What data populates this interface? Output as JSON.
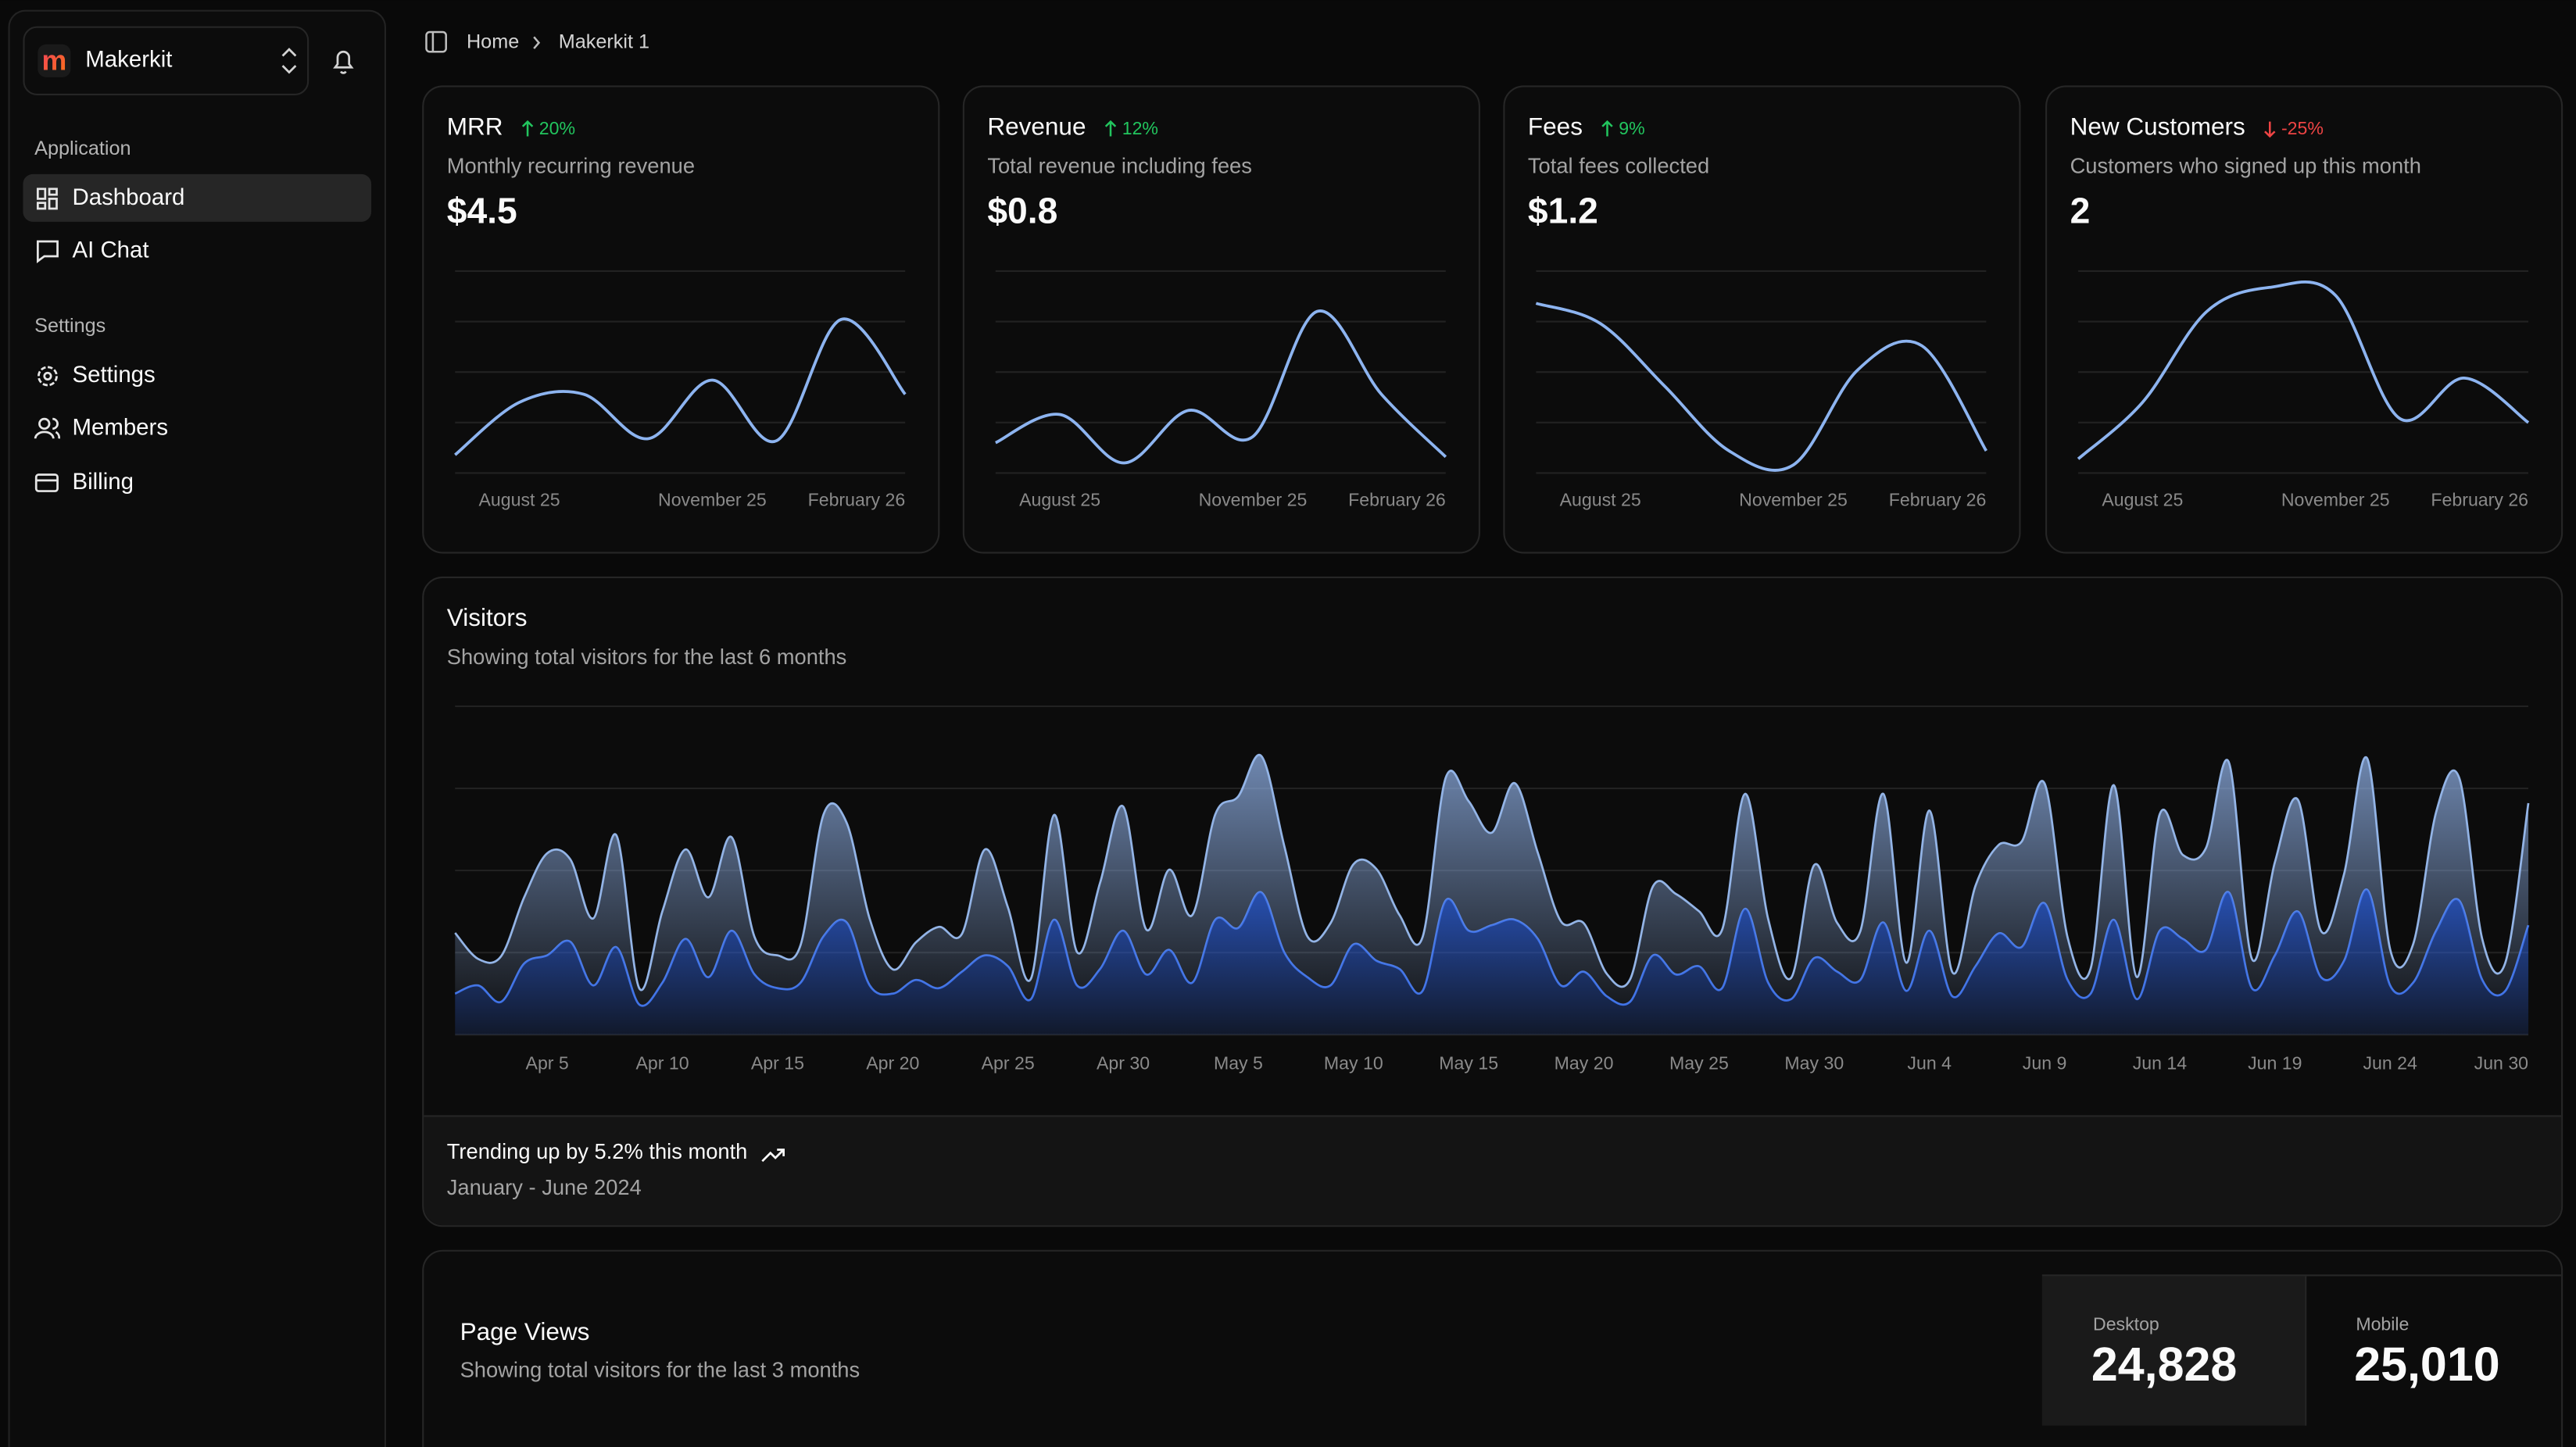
{
  "sidebar": {
    "workspace": "Makerkit",
    "sections": [
      {
        "title": "Application",
        "items": [
          "Dashboard",
          "AI Chat"
        ]
      },
      {
        "title": "Settings",
        "items": [
          "Settings",
          "Members",
          "Billing"
        ]
      }
    ]
  },
  "breadcrumb": [
    "Home",
    "Makerkit 1"
  ],
  "chart_data": [
    {
      "type": "line",
      "title": "MRR",
      "badge": "20%",
      "trend": "up",
      "subtitle": "Monthly recurring revenue",
      "value_label": "$4.5",
      "color": "#8db4f0",
      "categories": [
        null,
        "August 25",
        null,
        null,
        "November 25",
        null,
        null,
        "February 26"
      ],
      "values": [
        9,
        35,
        39,
        17,
        46,
        16,
        76,
        39
      ],
      "ylim": [
        0,
        100
      ],
      "yticks": [
        0,
        25,
        50,
        75,
        100
      ],
      "grid": true
    },
    {
      "type": "line",
      "title": "Revenue",
      "badge": "12%",
      "trend": "up",
      "subtitle": "Total revenue including fees",
      "value_label": "$0.8",
      "color": "#8db4f0",
      "categories": [
        null,
        "August 25",
        null,
        null,
        "November 25",
        null,
        null,
        "February 26"
      ],
      "values": [
        15,
        29,
        5,
        31,
        18,
        80,
        39,
        8
      ],
      "ylim": [
        0,
        100
      ],
      "yticks": [
        0,
        25,
        50,
        75,
        100
      ],
      "grid": true
    },
    {
      "type": "line",
      "title": "Fees",
      "badge": "9%",
      "trend": "up",
      "subtitle": "Total fees collected",
      "value_label": "$1.2",
      "color": "#8db4f0",
      "categories": [
        null,
        "August 25",
        null,
        null,
        "November 25",
        null,
        null,
        "February 26"
      ],
      "values": [
        84,
        74,
        43,
        11,
        4,
        51,
        63,
        11
      ],
      "ylim": [
        0,
        100
      ],
      "yticks": [
        0,
        25,
        50,
        75,
        100
      ],
      "grid": true
    },
    {
      "type": "line",
      "title": "New Customers",
      "badge": "-25%",
      "trend": "down",
      "subtitle": "Customers who signed up this month",
      "value_label": "2",
      "color": "#8db4f0",
      "categories": [
        null,
        "August 25",
        null,
        null,
        "November 25",
        null,
        null,
        "February 26"
      ],
      "values": [
        7,
        35,
        80,
        92,
        88,
        27,
        47,
        25
      ],
      "ylim": [
        0,
        100
      ],
      "yticks": [
        0,
        25,
        50,
        75,
        100
      ],
      "grid": true
    },
    {
      "type": "area",
      "stacked": true,
      "title": "Visitors",
      "subtitle": "Showing total visitors for the last 6 months",
      "footer_title": "Trending up by 5.2% this month",
      "footer_subtitle": "January - June 2024",
      "ylim": [
        0,
        1200
      ],
      "yticks": [
        0,
        300,
        600,
        900,
        1200
      ],
      "grid": true,
      "categories": [
        null,
        null,
        null,
        null,
        "Apr 5",
        null,
        null,
        null,
        null,
        "Apr 10",
        null,
        null,
        null,
        null,
        "Apr 15",
        null,
        null,
        null,
        null,
        "Apr 20",
        null,
        null,
        null,
        null,
        "Apr 25",
        null,
        null,
        null,
        null,
        "Apr 30",
        null,
        null,
        null,
        null,
        "May 5",
        null,
        null,
        null,
        null,
        "May 10",
        null,
        null,
        null,
        null,
        "May 15",
        null,
        null,
        null,
        null,
        "May 20",
        null,
        null,
        null,
        null,
        "May 25",
        null,
        null,
        null,
        null,
        "May 30",
        null,
        null,
        null,
        null,
        "Jun 4",
        null,
        null,
        null,
        null,
        "Jun 9",
        null,
        null,
        null,
        null,
        "Jun 14",
        null,
        null,
        null,
        null,
        "Jun 19",
        null,
        null,
        null,
        null,
        "Jun 24",
        null,
        null,
        null,
        null,
        null,
        "Jun 30"
      ],
      "series": [
        {
          "color": "#3d70e6",
          "values": [
            150,
            180,
            120,
            260,
            290,
            340,
            180,
            320,
            110,
            190,
            350,
            210,
            380,
            220,
            170,
            190,
            360,
            410,
            180,
            150,
            200,
            170,
            230,
            290,
            250,
            130,
            420,
            180,
            240,
            380,
            220,
            310,
            190,
            420,
            390,
            520,
            300,
            210,
            180,
            330,
            270,
            240,
            160,
            490,
            380,
            400,
            420,
            350,
            180,
            230,
            140,
            120,
            290,
            220,
            250,
            170,
            460,
            190,
            130,
            280,
            230,
            200,
            410,
            160,
            380,
            140,
            250,
            370,
            320,
            480,
            200,
            150,
            420,
            130,
            380,
            350,
            310,
            520,
            170,
            290,
            450,
            210,
            270,
            530,
            180,
            190,
            380,
            490,
            200,
            160,
            400
          ]
        },
        {
          "color": "#93b4e6",
          "values": [
            222,
            97,
            167,
            242,
            373,
            301,
            245,
            409,
            59,
            261,
            327,
            292,
            342,
            137,
            120,
            138,
            446,
            364,
            243,
            89,
            137,
            224,
            138,
            387,
            215,
            75,
            383,
            122,
            315,
            454,
            165,
            293,
            247,
            385,
            481,
            498,
            388,
            149,
            227,
            293,
            335,
            197,
            197,
            448,
            473,
            338,
            499,
            315,
            235,
            177,
            82,
            81,
            252,
            294,
            201,
            213,
            420,
            233,
            78,
            340,
            178,
            178,
            470,
            103,
            439,
            88,
            294,
            323,
            385,
            438,
            155,
            92,
            492,
            81,
            426,
            307,
            371,
            475,
            107,
            341,
            408,
            169,
            317,
            480,
            132,
            141,
            434,
            448,
            149,
            103,
            446
          ]
        }
      ]
    }
  ],
  "page_views": {
    "title": "Page Views",
    "subtitle": "Showing total visitors for the last 3 months",
    "stats": [
      {
        "label": "Desktop",
        "value": "24,828"
      },
      {
        "label": "Mobile",
        "value": "25,010"
      }
    ]
  }
}
